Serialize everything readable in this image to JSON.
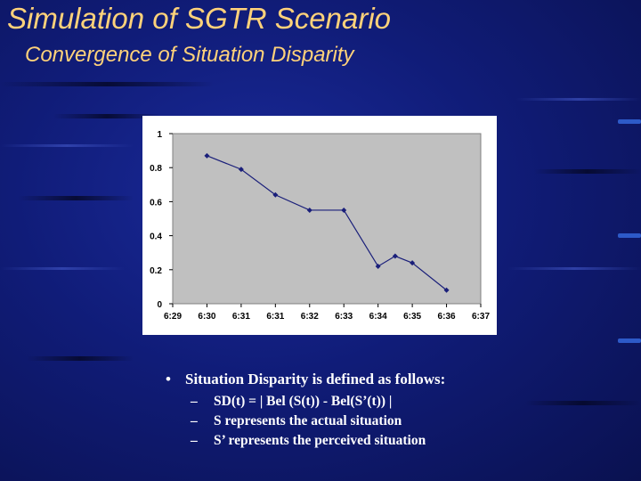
{
  "title": "Simulation of SGTR Scenario",
  "subtitle": "Convergence of Situation Disparity",
  "chart_data": {
    "type": "line",
    "title": "",
    "xlabel": "",
    "ylabel": "",
    "categories": [
      "6:29",
      "6:30",
      "6:31",
      "6:31",
      "6:32",
      "6:33",
      "6:34",
      "6:35",
      "6:36",
      "6:37"
    ],
    "points": [
      {
        "x": 1.0,
        "y": 0.87
      },
      {
        "x": 2.0,
        "y": 0.79
      },
      {
        "x": 3.0,
        "y": 0.64
      },
      {
        "x": 4.0,
        "y": 0.55
      },
      {
        "x": 5.0,
        "y": 0.55
      },
      {
        "x": 6.0,
        "y": 0.22
      },
      {
        "x": 6.5,
        "y": 0.28
      },
      {
        "x": 7.0,
        "y": 0.24
      },
      {
        "x": 8.0,
        "y": 0.08
      }
    ],
    "ylim": [
      0,
      1
    ],
    "yticks": [
      "0",
      "0.2",
      "0.4",
      "0.6",
      "0.8",
      "1"
    ],
    "grid": false,
    "legend": "none",
    "colors": {
      "plot_bg": "#c0c0c0",
      "line": "#1a1f7a",
      "marker": "#1a1f7a"
    }
  },
  "notes": {
    "bullet": "•",
    "dash": "–",
    "main": "Situation Disparity is defined as follows:",
    "items": [
      "SD(t) = | Bel (S(t)) - Bel(S’(t)) |",
      "S represents the actual situation",
      "S’ represents the perceived situation"
    ]
  }
}
